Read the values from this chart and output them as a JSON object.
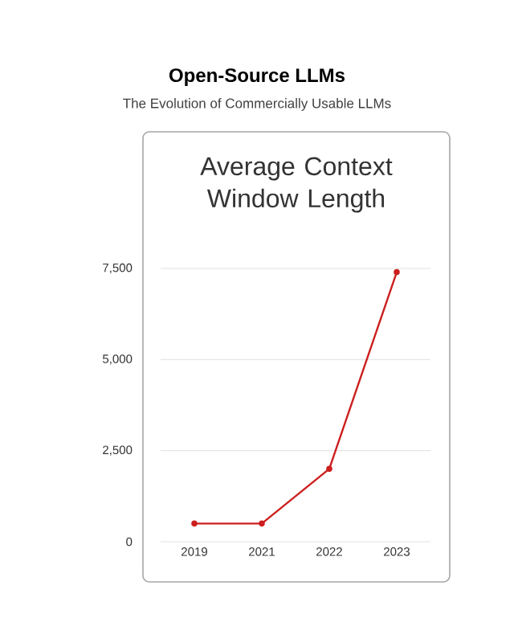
{
  "chart_data": {
    "type": "line",
    "title": "Open-Source LLMs",
    "subtitle": "The Evolution of Commercially Usable LLMs",
    "annotations": [
      "Average Context Window Length"
    ],
    "categories": [
      "2019",
      "2021",
      "2022",
      "2023"
    ],
    "series": [
      {
        "color": "#cc1f1f",
        "values": [
          500,
          500,
          2000,
          7400
        ]
      }
    ],
    "ylim": [
      0,
      7500
    ],
    "yticks": [
      0,
      {
        "value": 2500,
        "label": "2,500"
      },
      {
        "value": 5000,
        "label": "5,000"
      },
      {
        "value": 7500,
        "label": "7,500"
      }
    ],
    "grid": "y",
    "marker": "circle"
  }
}
